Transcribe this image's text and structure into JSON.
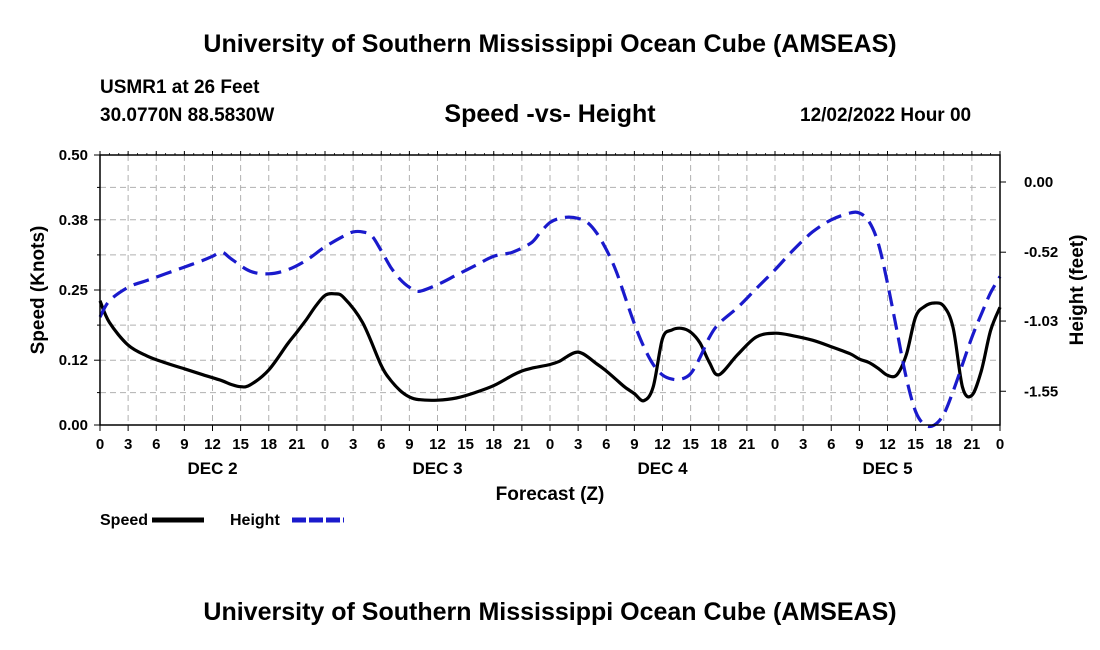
{
  "header": {
    "title": "University of Southern Mississippi Ocean Cube (AMSEAS)",
    "station": "USMR1 at 26 Feet",
    "coordinates": "30.0770N  88.5830W",
    "subtitle": "Speed -vs- Height",
    "datetime": "12/02/2022 Hour 00"
  },
  "footer": {
    "title": "University of Southern Mississippi Ocean Cube (AMSEAS)"
  },
  "chart_data": {
    "type": "line",
    "xlabel": "Forecast (Z)",
    "ylabel_left": "Speed (Knots)",
    "ylabel_right": "Height (feet)",
    "x_hours_range": [
      0,
      96
    ],
    "x_tick_labels": [
      "0",
      "3",
      "6",
      "9",
      "12",
      "15",
      "18",
      "21",
      "0",
      "3",
      "6",
      "9",
      "12",
      "15",
      "18",
      "21",
      "0",
      "3",
      "6",
      "9",
      "12",
      "15",
      "18",
      "21",
      "0",
      "3",
      "6",
      "9",
      "12",
      "15",
      "18",
      "21",
      "0"
    ],
    "day_labels": [
      {
        "label": "DEC 2",
        "hour": 12
      },
      {
        "label": "DEC 3",
        "hour": 36
      },
      {
        "label": "DEC 4",
        "hour": 60
      },
      {
        "label": "DEC 5",
        "hour": 84
      }
    ],
    "ylim_left": [
      0,
      0.5
    ],
    "yticks_left": [
      0.0,
      0.12,
      0.25,
      0.38,
      0.5
    ],
    "ytick_labels_left": [
      "0.00",
      "0.12",
      "0.25",
      "0.38",
      "0.50"
    ],
    "ylim_right": [
      -1.8,
      0.2
    ],
    "yticks_right": [
      0.0,
      -0.52,
      -1.03,
      -1.55
    ],
    "ytick_labels_right": [
      "0.00",
      "-0.52",
      "-1.03",
      "-1.55"
    ],
    "grid": true,
    "series": [
      {
        "name": "Speed",
        "color": "#000000",
        "dashed": false,
        "axis": "left",
        "hours": [
          0,
          1,
          3,
          5,
          7,
          9,
          11,
          13,
          14,
          15,
          16,
          18,
          20,
          21,
          22,
          23,
          24,
          25,
          26,
          28,
          30,
          31,
          32,
          33,
          34,
          36,
          38,
          40,
          42,
          44,
          45,
          46,
          48,
          49,
          51,
          53,
          54,
          55,
          56,
          57,
          58,
          59,
          60,
          61,
          62,
          63,
          64,
          65,
          66,
          68,
          70,
          72,
          74,
          76,
          78,
          80,
          81,
          82,
          83,
          84,
          85,
          86,
          87,
          88,
          89,
          90,
          91,
          92,
          93,
          94,
          95,
          96
        ],
        "values": [
          0.23,
          0.19,
          0.148,
          0.128,
          0.115,
          0.104,
          0.093,
          0.082,
          0.075,
          0.071,
          0.074,
          0.102,
          0.15,
          0.172,
          0.195,
          0.22,
          0.24,
          0.243,
          0.236,
          0.19,
          0.11,
          0.083,
          0.064,
          0.052,
          0.047,
          0.046,
          0.05,
          0.06,
          0.073,
          0.092,
          0.1,
          0.105,
          0.112,
          0.118,
          0.135,
          0.113,
          0.1,
          0.085,
          0.07,
          0.058,
          0.045,
          0.07,
          0.16,
          0.176,
          0.179,
          0.172,
          0.152,
          0.116,
          0.093,
          0.13,
          0.163,
          0.17,
          0.165,
          0.157,
          0.145,
          0.132,
          0.122,
          0.116,
          0.105,
          0.092,
          0.093,
          0.13,
          0.2,
          0.22,
          0.226,
          0.22,
          0.18,
          0.07,
          0.055,
          0.1,
          0.175,
          0.218
        ]
      },
      {
        "name": "Height",
        "color": "#1a1acc",
        "dashed": true,
        "axis": "right",
        "hours": [
          0,
          1,
          3,
          5,
          7,
          9,
          11,
          12,
          13,
          14,
          16,
          18,
          20,
          22,
          24,
          26,
          27,
          28,
          29,
          30,
          31,
          32,
          33,
          34,
          36,
          38,
          40,
          42,
          44,
          46,
          47,
          48,
          49,
          50,
          51,
          52,
          53,
          54,
          55,
          56,
          57,
          58,
          59,
          60,
          61,
          62,
          63,
          64,
          65,
          66,
          68,
          70,
          72,
          74,
          76,
          78,
          80,
          81,
          82,
          83,
          84,
          85,
          86,
          87,
          88,
          89,
          90,
          91,
          92,
          93,
          94,
          95,
          96
        ],
        "values": [
          -1.0,
          -0.88,
          -0.78,
          -0.73,
          -0.68,
          -0.63,
          -0.58,
          -0.55,
          -0.52,
          -0.57,
          -0.66,
          -0.68,
          -0.65,
          -0.58,
          -0.48,
          -0.4,
          -0.37,
          -0.37,
          -0.4,
          -0.51,
          -0.63,
          -0.72,
          -0.78,
          -0.81,
          -0.76,
          -0.69,
          -0.62,
          -0.55,
          -0.52,
          -0.45,
          -0.37,
          -0.3,
          -0.27,
          -0.26,
          -0.27,
          -0.3,
          -0.38,
          -0.5,
          -0.65,
          -0.85,
          -1.05,
          -1.22,
          -1.35,
          -1.43,
          -1.46,
          -1.46,
          -1.42,
          -1.3,
          -1.15,
          -1.05,
          -0.93,
          -0.79,
          -0.65,
          -0.5,
          -0.37,
          -0.28,
          -0.23,
          -0.23,
          -0.29,
          -0.45,
          -0.75,
          -1.1,
          -1.45,
          -1.7,
          -1.8,
          -1.8,
          -1.72,
          -1.55,
          -1.35,
          -1.15,
          -0.98,
          -0.82,
          -0.7
        ]
      }
    ],
    "legend": {
      "position": "bottom-left",
      "entries": [
        {
          "label": "Speed",
          "color": "#000000",
          "dashed": false
        },
        {
          "label": "Height",
          "color": "#1a1acc",
          "dashed": true
        }
      ]
    }
  }
}
